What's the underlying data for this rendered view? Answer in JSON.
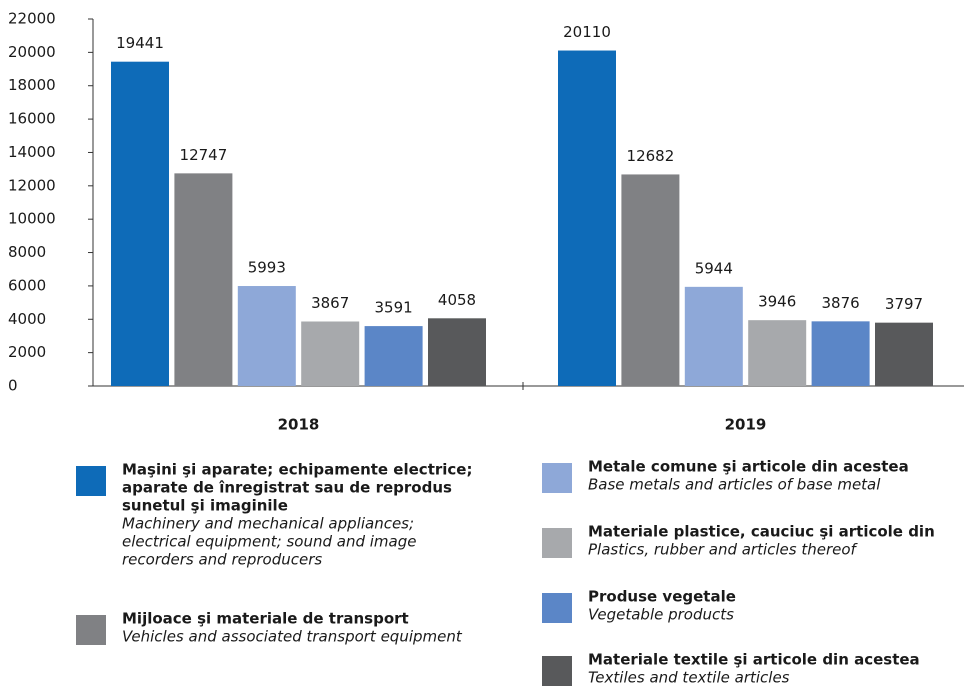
{
  "chart_data": {
    "type": "bar",
    "categories": [
      "2018",
      "2019"
    ],
    "ylim": [
      0,
      22000
    ],
    "yticks": [
      0,
      2000,
      4000,
      6000,
      8000,
      10000,
      12000,
      14000,
      16000,
      18000,
      20000,
      22000
    ],
    "series": [
      {
        "name": [
          "Maşini şi aparate; echipamente electrice;",
          "aparate de înregistrat sau de reprodus",
          "sunetul şi imaginile"
        ],
        "name_en": [
          "Machinery and mechanical appliances;",
          "electrical equipment; sound and image",
          "recorders and reproducers"
        ],
        "color": "#0e6bb8",
        "values": [
          19441,
          20110
        ]
      },
      {
        "name": [
          "Mijloace şi materiale de transport"
        ],
        "name_en": [
          "Vehicles and associated transport equipment"
        ],
        "color": "#808184",
        "values": [
          12747,
          12682
        ]
      },
      {
        "name": [
          "Metale comune şi articole din acestea"
        ],
        "name_en": [
          "Base metals and articles of base metal"
        ],
        "color": "#8ea8d8",
        "values": [
          5993,
          5944
        ]
      },
      {
        "name": [
          "Materiale plastice, cauciuc şi articole din"
        ],
        "name_en": [
          "Plastics, rubber and articles thereof"
        ],
        "color": "#a7a9ac",
        "values": [
          3867,
          3946
        ]
      },
      {
        "name": [
          "Produse vegetale"
        ],
        "name_en": [
          "Vegetable products"
        ],
        "color": "#5b86c7",
        "values": [
          3591,
          3876
        ]
      },
      {
        "name": [
          "Materiale textile şi articole din acestea"
        ],
        "name_en": [
          "Textiles and textile articles"
        ],
        "color": "#58595b",
        "values": [
          4058,
          3797
        ]
      }
    ]
  }
}
